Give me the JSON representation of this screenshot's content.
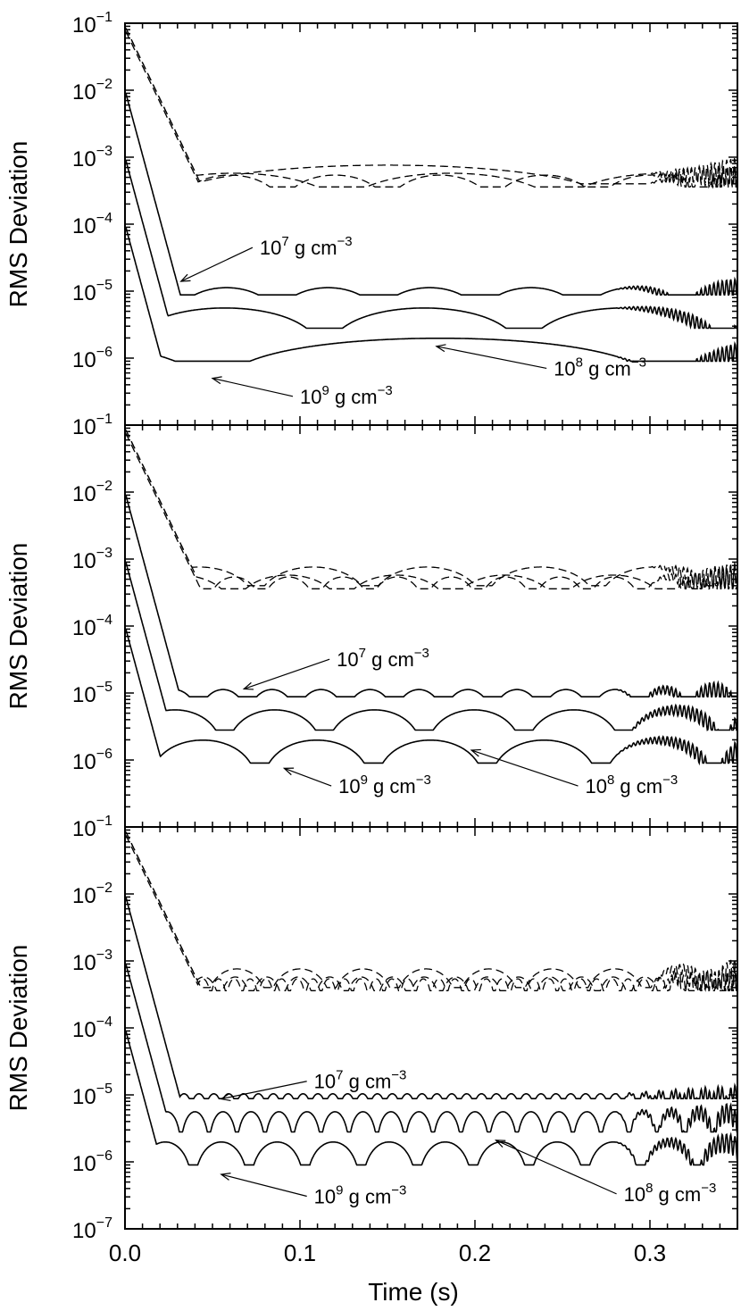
{
  "chart_data": [
    {
      "type": "line",
      "panel": "top",
      "ylabel": "RMS Deviation",
      "xlabel": "",
      "xlim": [
        0.0,
        0.35
      ],
      "ylim": [
        1e-07,
        0.1
      ],
      "yscale": "log",
      "ytick_labels": [
        {
          "value": 0.1,
          "base": "10",
          "exp": "−1"
        },
        {
          "value": 0.01,
          "base": "10",
          "exp": "−2"
        },
        {
          "value": 0.001,
          "base": "10",
          "exp": "−3"
        },
        {
          "value": 0.0001,
          "base": "10",
          "exp": "−4"
        },
        {
          "value": 1e-05,
          "base": "10",
          "exp": "−5"
        },
        {
          "value": 1e-06,
          "base": "10",
          "exp": "−6"
        }
      ],
      "annotations": [
        {
          "key": "a7",
          "base": "10",
          "exp": "7",
          "unit_main": " g cm",
          "unit_exp": "−3",
          "x": 0.077,
          "y": 3.5e-05,
          "arrow_to": [
            0.032,
            1.4e-05
          ]
        },
        {
          "key": "a8",
          "base": "10",
          "exp": "8",
          "unit_main": " g cm",
          "unit_exp": "−3",
          "x": 0.245,
          "y": 5.5e-07,
          "arrow_to": [
            0.178,
            1.5e-06
          ]
        },
        {
          "key": "a9",
          "base": "10",
          "exp": "9",
          "unit_main": " g cm",
          "unit_exp": "−3",
          "x": 0.1,
          "y": 2.1e-07,
          "arrow_to": [
            0.05,
            5e-07
          ]
        }
      ],
      "series": [
        {
          "style": "solid",
          "density": "10^7",
          "baseline": 8.8e-06,
          "amplitude": 1.28,
          "period": 0.058,
          "phase": 0.029,
          "dip": 0.45,
          "peak_start": 0.01
        },
        {
          "style": "solid",
          "density": "10^8",
          "baseline": 2.8e-06,
          "amplitude": 2.0,
          "period": 0.114,
          "phase": 0.0,
          "dip": 0.3,
          "peak_start": 0.001
        },
        {
          "style": "solid",
          "density": "10^9",
          "baseline": 9e-07,
          "amplitude": 2.2,
          "period": 0.26,
          "phase": 0.05,
          "dip": 0.25,
          "peak_start": 0.0001
        },
        {
          "style": "dashed",
          "density": "10^7",
          "baseline": 0.00036,
          "amplitude": 1.5,
          "period": 0.06,
          "phase": 0.03,
          "dip": 0.5,
          "peak_start": 0.08
        },
        {
          "style": "dashed",
          "density": "10^8",
          "baseline": 0.00036,
          "amplitude": 1.6,
          "period": 0.124,
          "phase": 0.0,
          "dip": 0.45,
          "peak_start": 0.09
        },
        {
          "style": "dashed",
          "density": "10^9",
          "baseline": 0.0004,
          "amplitude": 1.9,
          "period": 0.26,
          "phase": 0.02,
          "dip": 0.5,
          "peak_start": 0.09
        }
      ]
    },
    {
      "type": "line",
      "panel": "middle",
      "ylabel": "RMS Deviation",
      "xlabel": "",
      "xlim": [
        0.0,
        0.35
      ],
      "ylim": [
        1e-07,
        0.1
      ],
      "yscale": "log",
      "ytick_labels": [
        {
          "value": 0.1,
          "base": "10",
          "exp": "−1"
        },
        {
          "value": 0.01,
          "base": "10",
          "exp": "−2"
        },
        {
          "value": 0.001,
          "base": "10",
          "exp": "−3"
        },
        {
          "value": 0.0001,
          "base": "10",
          "exp": "−4"
        },
        {
          "value": 1e-05,
          "base": "10",
          "exp": "−5"
        },
        {
          "value": 1e-06,
          "base": "10",
          "exp": "−6"
        }
      ],
      "annotations": [
        {
          "key": "a7",
          "base": "10",
          "exp": "7",
          "unit_main": " g cm",
          "unit_exp": "−3",
          "x": 0.121,
          "y": 2.5e-05,
          "arrow_to": [
            0.068,
            1.15e-05
          ]
        },
        {
          "key": "a8",
          "base": "10",
          "exp": "8",
          "unit_main": " g cm",
          "unit_exp": "−3",
          "x": 0.263,
          "y": 3.2e-07,
          "arrow_to": [
            0.198,
            1.4e-06
          ]
        },
        {
          "key": "a9",
          "base": "10",
          "exp": "9",
          "unit_main": " g cm",
          "unit_exp": "−3",
          "x": 0.122,
          "y": 3.2e-07,
          "arrow_to": [
            0.091,
            7.5e-07
          ]
        }
      ],
      "series": [
        {
          "style": "solid",
          "density": "10^7",
          "baseline": 8.8e-06,
          "amplitude": 1.28,
          "period": 0.028,
          "phase": 0.014,
          "dip": 0.45,
          "peak_start": 0.01
        },
        {
          "style": "solid",
          "density": "10^8",
          "baseline": 2.8e-06,
          "amplitude": 2.0,
          "period": 0.057,
          "phase": 0.0,
          "dip": 0.3,
          "peak_start": 0.001
        },
        {
          "style": "solid",
          "density": "10^9",
          "baseline": 9e-07,
          "amplitude": 2.2,
          "period": 0.065,
          "phase": 0.012,
          "dip": 0.25,
          "peak_start": 0.0001
        },
        {
          "style": "dashed",
          "density": "10^7",
          "baseline": 0.00036,
          "amplitude": 1.5,
          "period": 0.031,
          "phase": 0.016,
          "dip": 0.5,
          "peak_start": 0.08
        },
        {
          "style": "dashed",
          "density": "10^8",
          "baseline": 0.00036,
          "amplitude": 1.6,
          "period": 0.062,
          "phase": 0.0,
          "dip": 0.45,
          "peak_start": 0.09
        },
        {
          "style": "dashed",
          "density": "10^9",
          "baseline": 0.0004,
          "amplitude": 1.9,
          "period": 0.065,
          "phase": 0.01,
          "dip": 0.5,
          "peak_start": 0.09
        }
      ]
    },
    {
      "type": "line",
      "panel": "bottom",
      "ylabel": "RMS Deviation",
      "xlabel": "Time (s)",
      "xlim": [
        0.0,
        0.35
      ],
      "ylim": [
        1e-07,
        0.1
      ],
      "yscale": "log",
      "xticks": [
        0.0,
        0.1,
        0.2,
        0.3
      ],
      "xtick_labels": [
        "0.0",
        "0.1",
        "0.2",
        "0.3"
      ],
      "ytick_labels": [
        {
          "value": 0.1,
          "base": "10",
          "exp": "−1"
        },
        {
          "value": 0.01,
          "base": "10",
          "exp": "−2"
        },
        {
          "value": 0.001,
          "base": "10",
          "exp": "−3"
        },
        {
          "value": 0.0001,
          "base": "10",
          "exp": "−4"
        },
        {
          "value": 1e-05,
          "base": "10",
          "exp": "−5"
        },
        {
          "value": 1e-06,
          "base": "10",
          "exp": "−6"
        },
        {
          "value": 1e-07,
          "base": "10",
          "exp": "−7"
        }
      ],
      "annotations": [
        {
          "key": "a7",
          "base": "10",
          "exp": "7",
          "unit_main": " g cm",
          "unit_exp": "−3",
          "x": 0.108,
          "y": 1.25e-05,
          "arrow_to": [
            0.055,
            8.7e-06
          ]
        },
        {
          "key": "a8",
          "base": "10",
          "exp": "8",
          "unit_main": " g cm",
          "unit_exp": "−3",
          "x": 0.285,
          "y": 2.6e-07,
          "arrow_to": [
            0.212,
            2.1e-06
          ]
        },
        {
          "key": "a9",
          "base": "10",
          "exp": "9",
          "unit_main": " g cm",
          "unit_exp": "−3",
          "x": 0.108,
          "y": 2.4e-07,
          "arrow_to": [
            0.055,
            6.5e-07
          ]
        }
      ],
      "series": [
        {
          "style": "solid",
          "density": "10^7",
          "baseline": 8.8e-06,
          "amplitude": 1.18,
          "period": 0.0085,
          "phase": 0.004,
          "dip": 0.75,
          "peak_start": 0.01
        },
        {
          "style": "solid",
          "density": "10^8",
          "baseline": 2.8e-06,
          "amplitude": 2.0,
          "period": 0.016,
          "phase": 0.0,
          "dip": 0.55,
          "peak_start": 0.001
        },
        {
          "style": "solid",
          "density": "10^9",
          "baseline": 9e-07,
          "amplitude": 2.2,
          "period": 0.032,
          "phase": 0.007,
          "dip": 0.25,
          "peak_start": 0.0001
        },
        {
          "style": "dashed",
          "density": "10^7",
          "baseline": 0.00036,
          "amplitude": 1.5,
          "period": 0.009,
          "phase": 0.004,
          "dip": 0.7,
          "peak_start": 0.08
        },
        {
          "style": "dashed",
          "density": "10^8",
          "baseline": 0.00036,
          "amplitude": 1.6,
          "period": 0.018,
          "phase": 0.0,
          "dip": 0.55,
          "peak_start": 0.09
        },
        {
          "style": "dashed",
          "density": "10^9",
          "baseline": 0.0004,
          "amplitude": 1.9,
          "period": 0.036,
          "phase": 0.01,
          "dip": 0.5,
          "peak_start": 0.09
        }
      ]
    }
  ]
}
